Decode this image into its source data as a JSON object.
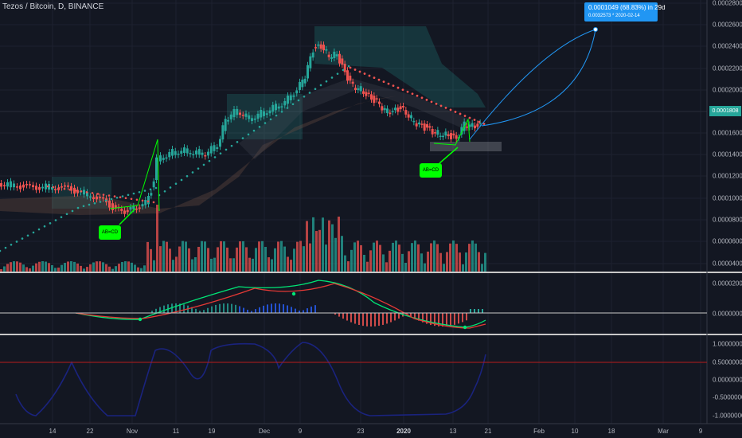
{
  "header": {
    "title": "Tezos / Bitcoin, D, BINANCE"
  },
  "price_axis": {
    "main_ticks": [
      "0.0002800",
      "0.0002600",
      "0.0002400",
      "0.0002200",
      "0.0002000",
      "0.0001600",
      "0.0001400",
      "0.0001200",
      "0.0001000",
      "0.0000800",
      "0.0000600",
      "0.0000400"
    ],
    "current_price": "0.0001808",
    "macd_ticks": [
      "0.0000200",
      "0.0000000"
    ],
    "osc_ticks": [
      "1.0000000",
      "0.5000000",
      "0.0000000",
      "-0.5000000",
      "-1.0000000"
    ]
  },
  "time_axis": {
    "labels": [
      {
        "text": "14",
        "bold": false
      },
      {
        "text": "22",
        "bold": false
      },
      {
        "text": "Nov",
        "bold": false
      },
      {
        "text": "11",
        "bold": false
      },
      {
        "text": "19",
        "bold": false
      },
      {
        "text": "Dec",
        "bold": false
      },
      {
        "text": "9",
        "bold": false
      },
      {
        "text": "23",
        "bold": false
      },
      {
        "text": "2020",
        "bold": true
      },
      {
        "text": "13",
        "bold": false
      },
      {
        "text": "21",
        "bold": false
      },
      {
        "text": "Feb",
        "bold": false
      },
      {
        "text": "10",
        "bold": false
      },
      {
        "text": "18",
        "bold": false
      },
      {
        "text": "Mar",
        "bold": false
      },
      {
        "text": "9",
        "bold": false
      }
    ]
  },
  "measure_tool": {
    "line1": "0.0001049 (68.83%) in 29d",
    "line2": "0.0032573 *   2020-02-14"
  },
  "annotations": {
    "pattern_label": "AB=CD"
  },
  "colors": {
    "background": "#131722",
    "up": "#26a69a",
    "down": "#ef5350",
    "accent": "#2196f3",
    "pattern": "#00ff00",
    "macd": "#00e676",
    "signal": "#e53935",
    "osc": "#1a237e"
  }
}
